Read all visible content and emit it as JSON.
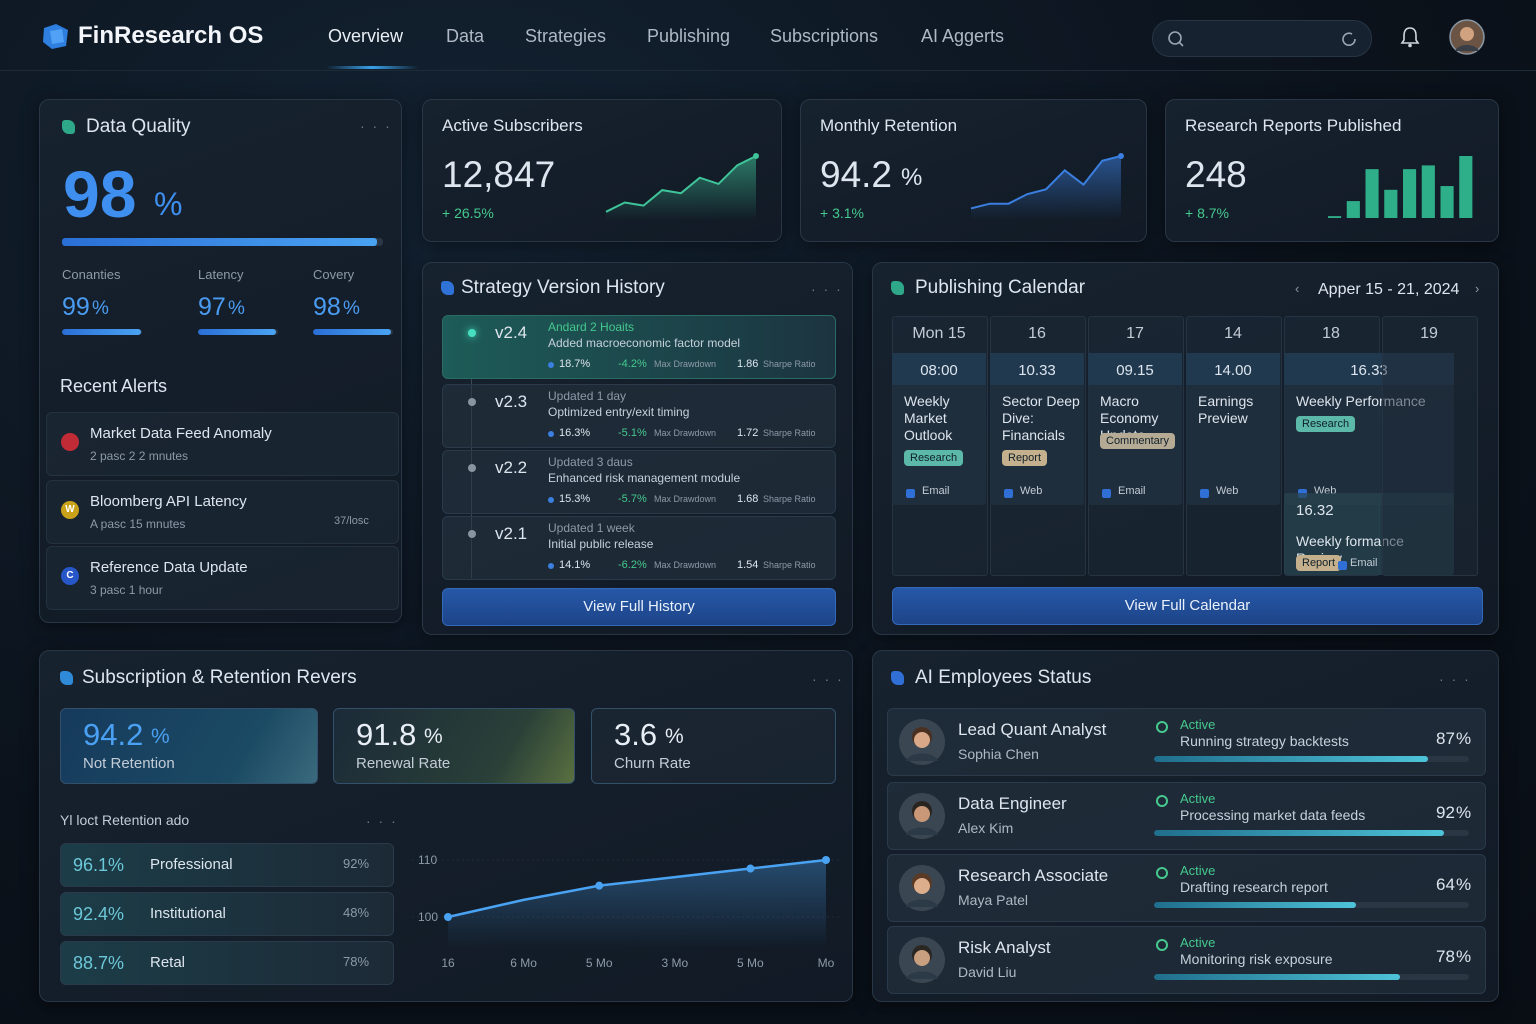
{
  "nav": {
    "brand": "FinResearch OS",
    "items": [
      "Overview",
      "Data",
      "Strategies",
      "Publishing",
      "Subscriptions",
      "AI Aggerts"
    ]
  },
  "data_quality": {
    "title": "Data Quality",
    "value": 98,
    "unit": "%",
    "metrics": [
      {
        "label": "Conanties",
        "value": 99,
        "unit": "%"
      },
      {
        "label": "Latency",
        "value": 97,
        "unit": "%"
      },
      {
        "label": "Covery",
        "value": 98,
        "unit": "%"
      }
    ],
    "alerts_title": "Recent Alerts",
    "alerts": [
      {
        "title": "Market Data Feed Anomaly",
        "time": "2 pasc 2 2 mnutes",
        "color": "#c02b35"
      },
      {
        "icon": "W",
        "title": "Bloomberg API Latency",
        "time": "A pasc 15 mnutes",
        "note": "37/losc",
        "color": "#c9a21a"
      },
      {
        "icon": "C",
        "title": "Reference Data Update",
        "time": "3 pasc 1 hour",
        "color": "#2656c8"
      }
    ]
  },
  "kpis": [
    {
      "title": "Active Subscribers",
      "value": "12,847",
      "change": "+ 26.5%",
      "kind": "line",
      "color": "#3fc59a",
      "spark": [
        2,
        5,
        4,
        9,
        8,
        13,
        11,
        17,
        20
      ]
    },
    {
      "title": "Monthly Retention",
      "value": "94.2",
      "unit": "%",
      "change": "+ 3.1%",
      "kind": "line",
      "color": "#3b7fe0",
      "spark": [
        2,
        3,
        3,
        5,
        6,
        10,
        7,
        12,
        13
      ]
    },
    {
      "title": "Research Reports Published",
      "value": "248",
      "change": "+ 8.7%",
      "kind": "bars",
      "color": "#2fae8a",
      "spark": [
        1,
        9,
        26,
        15,
        26,
        28,
        17,
        33
      ]
    }
  ],
  "strategy": {
    "title": "Strategy Version History",
    "dd_label": "Max Drawdown",
    "sharpe_label": "Sharpe Ratio",
    "button": "View Full History",
    "versions": [
      {
        "version": "v2.4",
        "updated": "Andard 2 Hoaits",
        "desc": "Added macroeconomic factor model",
        "ret": "18.7%",
        "dd": "-4.2%",
        "sharpe": "1.86",
        "active": true
      },
      {
        "version": "v2.3",
        "updated": "Updated 1 day",
        "desc": "Optimized entry/exit timing",
        "ret": "16.3%",
        "dd": "-5.1%",
        "sharpe": "1.72"
      },
      {
        "version": "v2.2",
        "updated": "Updated 3 daus",
        "desc": "Enhanced risk management module",
        "ret": "15.3%",
        "dd": "-5.7%",
        "sharpe": "1.68"
      },
      {
        "version": "v2.1",
        "updated": "Updated 1 week",
        "desc": "Initial public release",
        "ret": "14.1%",
        "dd": "-6.2%",
        "sharpe": "1.54"
      }
    ]
  },
  "calendar": {
    "title": "Publishing Calendar",
    "range": "Apper 15 - 21, 2024",
    "button": "View Full Calendar",
    "days": [
      "Mon 15",
      "16",
      "17",
      "14",
      "18",
      "19"
    ],
    "columns": [
      [
        {
          "time": "08:00",
          "title": "Weekly Market Outlook",
          "tag": "Research",
          "channel": "Email"
        }
      ],
      [
        {
          "time": "10.33",
          "title": "Sector Deep Dive: Financials",
          "tag": "Report",
          "channel": "Web"
        }
      ],
      [
        {
          "time": "09.15",
          "title": "Macro Economy Update",
          "tag": "Commentary",
          "channel": "Email"
        }
      ],
      [
        {
          "time": "14.00",
          "title": "Earnings Preview",
          "channel": "Web"
        }
      ],
      [
        {
          "time": "16.33",
          "title": "Weekly Performance",
          "tag": "Research",
          "channel": "Web"
        },
        {
          "time": "16.32",
          "title": "Weekly formance Review",
          "tag": "Report",
          "channel": "Email"
        }
      ],
      []
    ]
  },
  "subscription": {
    "title": "Subscription & Retention Revers",
    "tiles": [
      {
        "value": "94.2",
        "unit": "%",
        "label": "Not Retention"
      },
      {
        "value": "91.8",
        "unit": "%",
        "label": "Renewal Rate"
      },
      {
        "value": "3.6",
        "unit": "%",
        "label": "Churn Rate"
      }
    ],
    "table_title": "Yl loct Retention ado",
    "rows": [
      {
        "value": "96.1%",
        "segment": "Professional",
        "change": "92%"
      },
      {
        "value": "92.4%",
        "segment": "Institutional",
        "change": "48%"
      },
      {
        "value": "88.7%",
        "segment": "Retal",
        "change": "78%"
      }
    ],
    "chart": {
      "type": "line",
      "categories": [
        "16",
        "6 Mo",
        "5 Mo",
        "3 Mo",
        "5 Mo",
        "Mo"
      ],
      "values": [
        100,
        103,
        105.5,
        107,
        108.5,
        110
      ],
      "ylim": [
        98,
        114
      ],
      "yticks": [
        100,
        110
      ],
      "color": "#4aa3f2"
    }
  },
  "ai": {
    "title": "AI Employees Status",
    "employees": [
      {
        "role": "Lead Quant Analyst",
        "name": "Sophia Chen",
        "status": "Active",
        "task": "Running strategy backtests",
        "progress": 87,
        "unit": "%"
      },
      {
        "role": "Data Engineer",
        "name": "Alex Kim",
        "status": "Active",
        "task": "Processing market data feeds",
        "progress": 92,
        "unit": "%"
      },
      {
        "role": "Research Associate",
        "name": "Maya Patel",
        "status": "Active",
        "task": "Drafting research report",
        "progress": 64,
        "unit": "%"
      },
      {
        "role": "Risk Analyst",
        "name": "David Liu",
        "status": "Active",
        "task": "Monitoring risk exposure",
        "progress": 78,
        "unit": "%"
      }
    ]
  }
}
